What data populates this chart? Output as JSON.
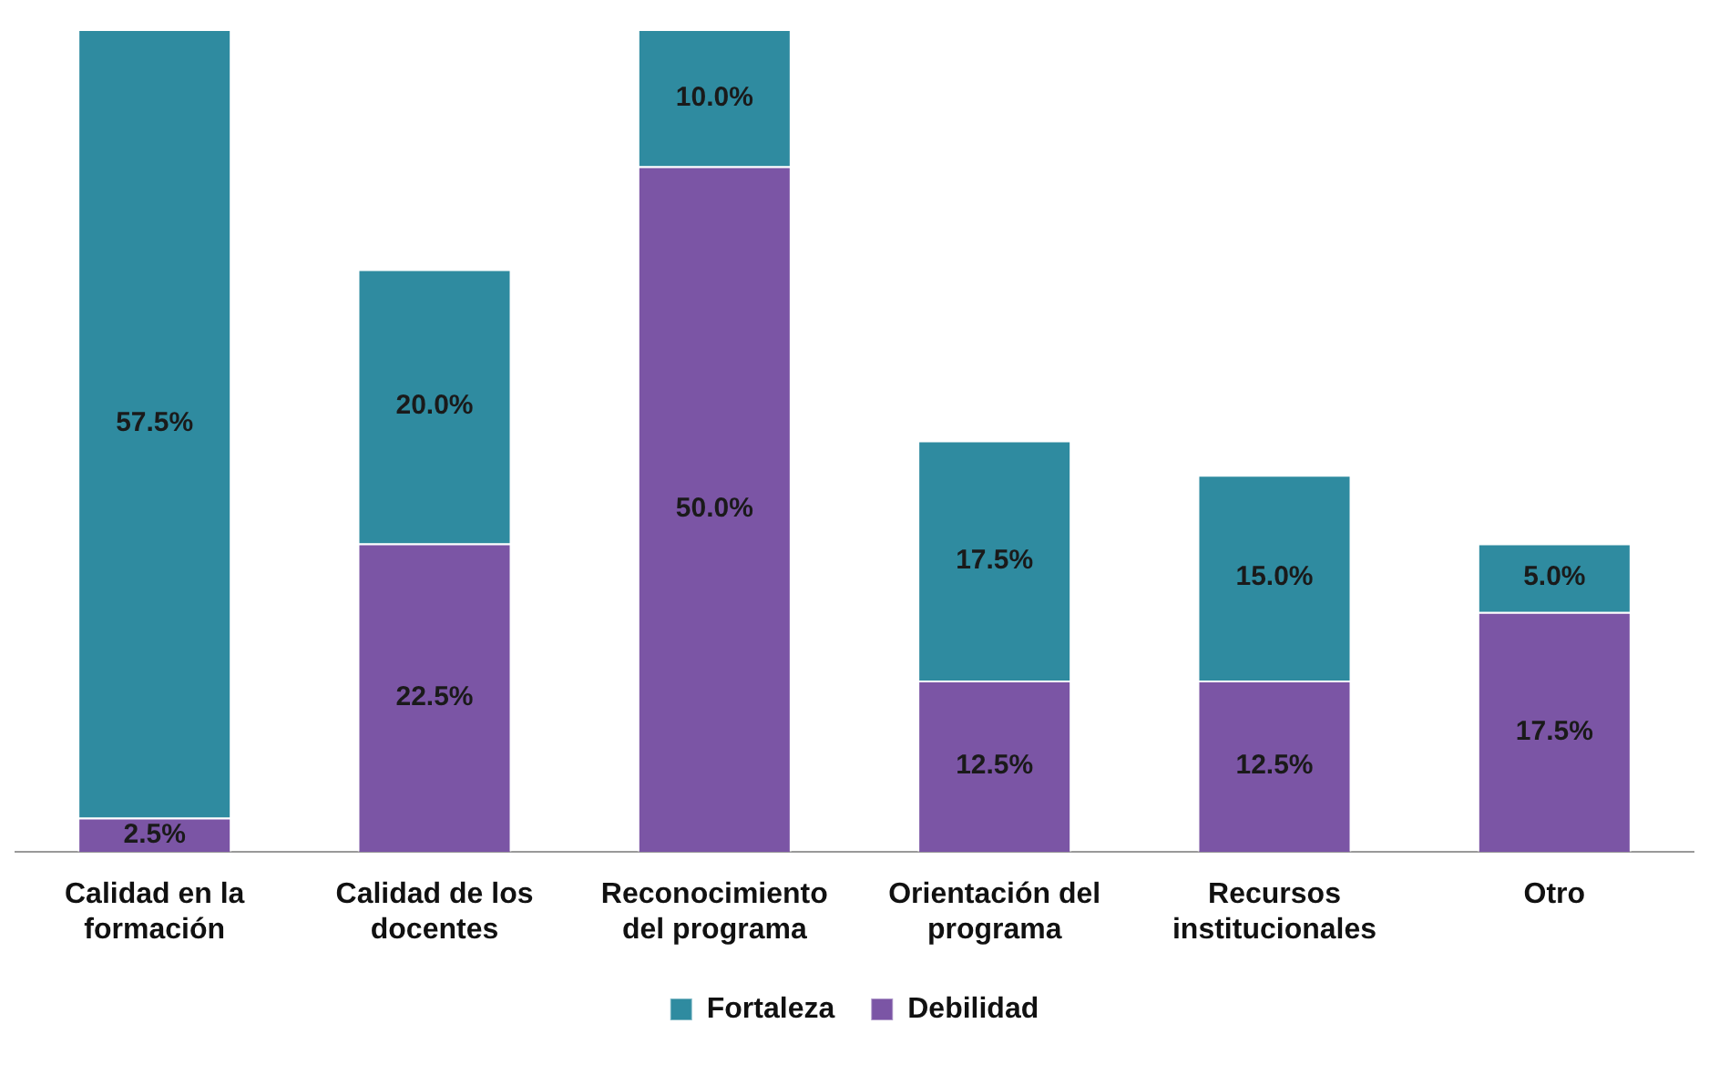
{
  "chart_data": {
    "type": "bar",
    "stacked": true,
    "categories": [
      "Calidad en la formación",
      "Calidad de los docentes",
      "Reconocimiento del programa",
      "Orientación del programa",
      "Recursos institucionales",
      "Otro"
    ],
    "series": [
      {
        "name": "Debilidad",
        "color": "#7b55a5",
        "values": [
          2.5,
          22.5,
          50.0,
          12.5,
          12.5,
          17.5
        ],
        "value_labels": [
          "2.5%",
          "22.5%",
          "50.0%",
          "12.5%",
          "12.5%",
          "17.5%"
        ]
      },
      {
        "name": "Fortaleza",
        "color": "#2f8ba0",
        "values": [
          57.5,
          20.0,
          10.0,
          17.5,
          15.0,
          5.0
        ],
        "value_labels": [
          "57.5%",
          "20.0%",
          "10.0%",
          "17.5%",
          "15.0%",
          "5.0%"
        ]
      }
    ],
    "legend": "bottom",
    "grid": false
  }
}
